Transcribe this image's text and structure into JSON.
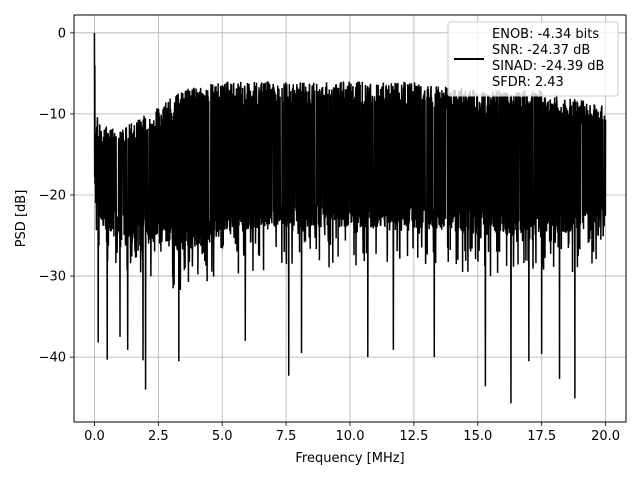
{
  "chart_data": {
    "type": "line",
    "title": "",
    "xlabel": "Frequency [MHz]",
    "ylabel": "PSD [dB]",
    "xlim": [
      -0.8,
      20.8
    ],
    "ylim": [
      -48,
      2.2
    ],
    "xticks": [
      0.0,
      2.5,
      5.0,
      7.5,
      10.0,
      12.5,
      15.0,
      17.5,
      20.0
    ],
    "xtick_labels": [
      "0.0",
      "2.5",
      "5.0",
      "7.5",
      "10.0",
      "12.5",
      "15.0",
      "17.5",
      "20.0"
    ],
    "yticks": [
      0,
      -10,
      -20,
      -30,
      -40
    ],
    "ytick_labels": [
      "0",
      "−10",
      "−20",
      "−30",
      "−40"
    ],
    "grid": true,
    "legend_position": "top-right",
    "series": [
      {
        "color": "#000000",
        "legend": [
          "ENOB: -4.34 bits",
          "SNR: -24.37 dB",
          "SINAD: -24.39 dB",
          "SFDR: 2.43"
        ],
        "peak": {
          "x": 0.0,
          "y": 0.0
        },
        "x_range": [
          0.0,
          20.0
        ],
        "band_envelope": {
          "x": [
            0.0,
            0.3,
            1.0,
            2.5,
            3.5,
            5.0,
            7.5,
            10.0,
            12.5,
            15.0,
            17.5,
            20.0
          ],
          "upper": [
            -10,
            -11,
            -12,
            -9,
            -7,
            -6,
            -6,
            -6,
            -6,
            -7,
            -7,
            -9
          ],
          "lower": [
            -20,
            -24,
            -25,
            -26,
            -27,
            -25,
            -24,
            -24,
            -24,
            -25,
            -25,
            -24
          ]
        },
        "deep_nulls": [
          {
            "x": 0.15,
            "y": -38.2
          },
          {
            "x": 0.5,
            "y": -40.3
          },
          {
            "x": 1.0,
            "y": -37.5
          },
          {
            "x": 1.3,
            "y": -39.1
          },
          {
            "x": 1.9,
            "y": -40.4
          },
          {
            "x": 2.0,
            "y": -44.0
          },
          {
            "x": 3.3,
            "y": -40.5
          },
          {
            "x": 5.9,
            "y": -38.0
          },
          {
            "x": 7.6,
            "y": -42.3
          },
          {
            "x": 8.1,
            "y": -39.5
          },
          {
            "x": 10.7,
            "y": -40.0
          },
          {
            "x": 11.7,
            "y": -39.1
          },
          {
            "x": 13.3,
            "y": -40.0
          },
          {
            "x": 15.3,
            "y": -43.6
          },
          {
            "x": 16.3,
            "y": -45.7
          },
          {
            "x": 17.0,
            "y": -40.5
          },
          {
            "x": 17.5,
            "y": -39.6
          },
          {
            "x": 18.2,
            "y": -42.7
          },
          {
            "x": 18.8,
            "y": -45.1
          }
        ]
      }
    ]
  }
}
